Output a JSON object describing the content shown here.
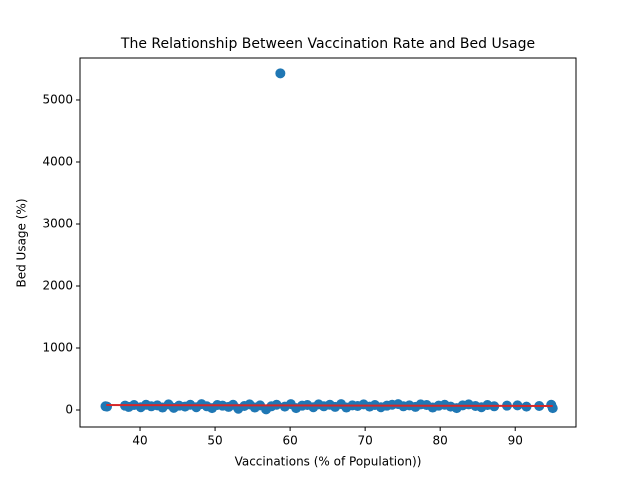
{
  "chart_data": {
    "type": "scatter",
    "title": "The Relationship Between Vaccination Rate and Bed Usage",
    "x_label": "Vaccinations (% of Population))",
    "y_label": "Bed Usage (%)",
    "xlim": [
      32,
      98.1
    ],
    "ylim": [
      -274,
      5677
    ],
    "xticks": [
      40,
      50,
      60,
      70,
      80,
      90
    ],
    "yticks": [
      0,
      1000,
      2000,
      3000,
      4000,
      5000
    ],
    "series": [
      {
        "type": "scatter",
        "color": "#1f77b4",
        "x": [
          35.4,
          35.6,
          38.0,
          38.5,
          39.2,
          40.1,
          40.8,
          41.5,
          42.3,
          43.0,
          43.8,
          44.5,
          45.2,
          46.0,
          46.7,
          47.5,
          48.2,
          48.9,
          49.6,
          50.3,
          51.0,
          51.8,
          52.4,
          53.1,
          53.9,
          54.6,
          55.3,
          56.0,
          56.8,
          57.5,
          58.2,
          58.7,
          59.3,
          60.1,
          60.8,
          61.6,
          62.3,
          63.1,
          63.8,
          64.5,
          65.3,
          66.0,
          66.8,
          67.5,
          68.3,
          69.0,
          69.8,
          70.6,
          71.3,
          72.1,
          72.9,
          73.6,
          74.4,
          75.1,
          75.9,
          76.7,
          77.4,
          78.2,
          79.0,
          79.8,
          80.6,
          81.4,
          82.2,
          83.0,
          83.8,
          84.7,
          85.5,
          86.3,
          87.2,
          88.9,
          90.3,
          91.5,
          93.2,
          94.8,
          95.0
        ],
        "values": [
          60,
          55,
          70,
          50,
          80,
          45,
          85,
          60,
          75,
          40,
          90,
          35,
          70,
          55,
          85,
          45,
          95,
          60,
          30,
          80,
          70,
          50,
          85,
          20,
          65,
          90,
          40,
          75,
          10,
          60,
          85,
          5430,
          55,
          95,
          30,
          70,
          80,
          45,
          90,
          60,
          85,
          50,
          95,
          40,
          75,
          65,
          90,
          55,
          80,
          45,
          70,
          85,
          95,
          60,
          75,
          50,
          90,
          80,
          40,
          70,
          85,
          55,
          30,
          75,
          90,
          65,
          45,
          80,
          60,
          70,
          75,
          55,
          65,
          85,
          30
        ]
      },
      {
        "type": "line",
        "color": "#d62728",
        "x": [
          35.5,
          95
        ],
        "values": [
          80,
          65
        ]
      }
    ]
  }
}
